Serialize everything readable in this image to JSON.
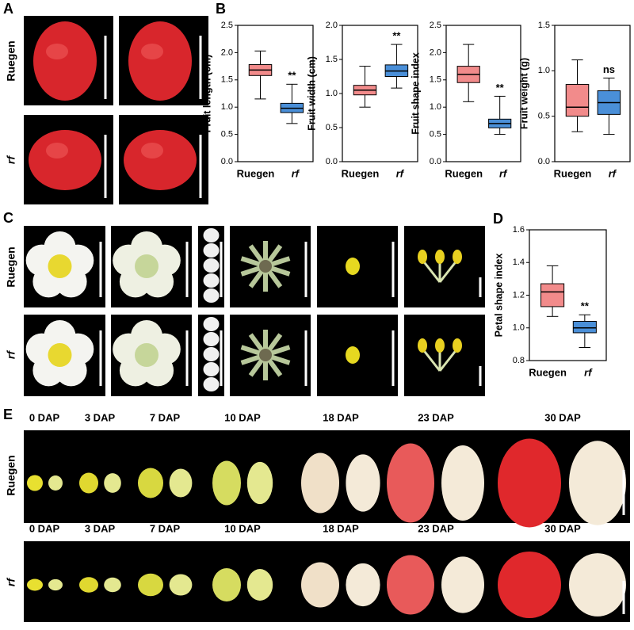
{
  "panel_labels": [
    "A",
    "B",
    "C",
    "D",
    "E"
  ],
  "row_labels": [
    "Ruegen",
    "rf"
  ],
  "stages": [
    "0 DAP",
    "3 DAP",
    "7 DAP",
    "10 DAP",
    "18 DAP",
    "23 DAP",
    "30 DAP"
  ],
  "chart_data": [
    {
      "type": "box",
      "y_label": "Fruit length (cm)",
      "categories": [
        "Ruegen",
        "rf"
      ],
      "ylim": [
        0,
        2.5
      ],
      "yticks": [
        {
          "value": 0,
          "label": "0.0"
        },
        0.5,
        {
          "value": 1,
          "label": "1.0"
        },
        1.5,
        {
          "value": 2,
          "label": "2.0"
        },
        2.5
      ],
      "boxes": [
        {
          "min": 1.15,
          "q1": 1.58,
          "median": 1.68,
          "q3": 1.78,
          "max": 2.03,
          "color": "#f28b8b"
        },
        {
          "min": 0.7,
          "q1": 0.9,
          "median": 0.98,
          "q3": 1.07,
          "max": 1.42,
          "color": "#4a8fd8"
        }
      ],
      "annotation": "**"
    },
    {
      "type": "box",
      "y_label": "Fruit width (cm)",
      "categories": [
        "Ruegen",
        "rf"
      ],
      "ylim": [
        0,
        2.0
      ],
      "yticks": [
        {
          "value": 0,
          "label": "0.0"
        },
        0.5,
        {
          "value": 1,
          "label": "1.0"
        },
        1.5,
        {
          "value": 2,
          "label": "2.0"
        }
      ],
      "boxes": [
        {
          "min": 0.8,
          "q1": 0.98,
          "median": 1.05,
          "q3": 1.12,
          "max": 1.4,
          "color": "#f28b8b"
        },
        {
          "min": 1.08,
          "q1": 1.25,
          "median": 1.33,
          "q3": 1.42,
          "max": 1.72,
          "color": "#4a8fd8"
        }
      ],
      "annotation": "**"
    },
    {
      "type": "box",
      "y_label": "Fruit shape index",
      "categories": [
        "Ruegen",
        "rf"
      ],
      "ylim": [
        0,
        2.5
      ],
      "yticks": [
        {
          "value": 0,
          "label": "0.0"
        },
        0.5,
        {
          "value": 1,
          "label": "1.0"
        },
        1.5,
        {
          "value": 2,
          "label": "2.0"
        },
        2.5
      ],
      "boxes": [
        {
          "min": 1.1,
          "q1": 1.45,
          "median": 1.6,
          "q3": 1.75,
          "max": 2.15,
          "color": "#f28b8b"
        },
        {
          "min": 0.5,
          "q1": 0.62,
          "median": 0.7,
          "q3": 0.78,
          "max": 1.2,
          "color": "#4a8fd8"
        }
      ],
      "annotation": "**"
    },
    {
      "type": "box",
      "y_label": "Fruit weight (g)",
      "categories": [
        "Ruegen",
        "rf"
      ],
      "ylim": [
        0,
        1.5
      ],
      "yticks": [
        {
          "value": 0,
          "label": "0.0"
        },
        0.5,
        {
          "value": 1,
          "label": "1.0"
        },
        1.5
      ],
      "boxes": [
        {
          "min": 0.33,
          "q1": 0.5,
          "median": 0.6,
          "q3": 0.85,
          "max": 1.12,
          "color": "#f28b8b"
        },
        {
          "min": 0.3,
          "q1": 0.52,
          "median": 0.65,
          "q3": 0.78,
          "max": 0.92,
          "color": "#4a8fd8"
        }
      ],
      "annotation": "ns"
    },
    {
      "type": "box",
      "y_label": "Petal shape index",
      "categories": [
        "Ruegen",
        "rf"
      ],
      "ylim": [
        0.8,
        1.6
      ],
      "yticks": [
        0.8,
        {
          "value": 1,
          "label": "1.0"
        },
        1.2,
        1.4,
        1.6
      ],
      "boxes": [
        {
          "min": 1.07,
          "q1": 1.13,
          "median": 1.22,
          "q3": 1.27,
          "max": 1.38,
          "color": "#f28b8b"
        },
        {
          "min": 0.88,
          "q1": 0.97,
          "median": 1.0,
          "q3": 1.04,
          "max": 1.08,
          "color": "#4a8fd8"
        }
      ],
      "annotation": "**"
    }
  ]
}
